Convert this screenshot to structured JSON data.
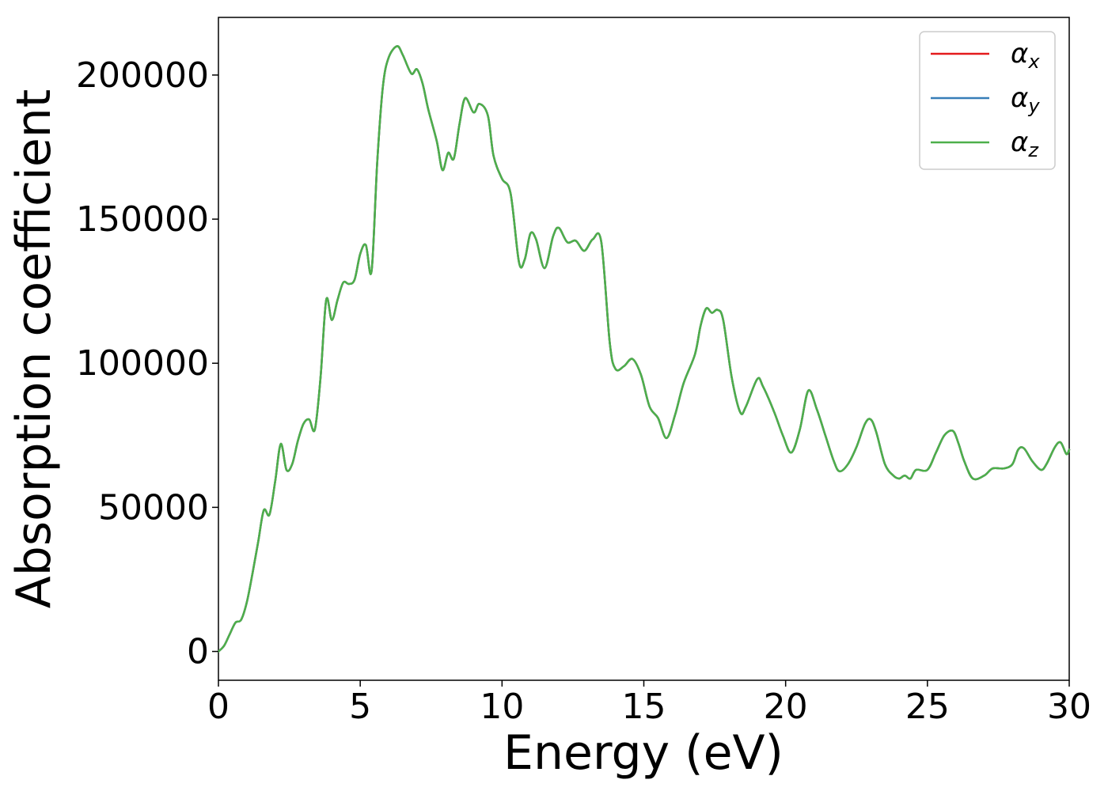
{
  "chart_data": {
    "type": "line",
    "xlabel": "Energy (eV)",
    "ylabel": "Absorption coefficient",
    "xlim": [
      0,
      30
    ],
    "ylim": [
      -10000,
      220000
    ],
    "xticks": [
      "0",
      "5",
      "10",
      "15",
      "20",
      "25",
      "30"
    ],
    "xtick_values": [
      0,
      5,
      10,
      15,
      20,
      25,
      30
    ],
    "yticks": [
      "0",
      "50000",
      "100000",
      "150000",
      "200000"
    ],
    "ytick_values": [
      0,
      50000,
      100000,
      150000,
      200000
    ],
    "grid": false,
    "legend_position": "top-right",
    "series": [
      {
        "name": "α",
        "sub": "x",
        "color": "#e41a1c",
        "ref": "shared"
      },
      {
        "name": "α",
        "sub": "y",
        "color": "#377eb8",
        "ref": "shared"
      },
      {
        "name": "α",
        "sub": "z",
        "color": "#4daf4a",
        "ref": "shared"
      }
    ],
    "shared_points": [
      [
        0,
        0
      ],
      [
        0.2,
        2000
      ],
      [
        0.4,
        6000
      ],
      [
        0.6,
        10000
      ],
      [
        0.8,
        11000
      ],
      [
        1.0,
        17000
      ],
      [
        1.2,
        27000
      ],
      [
        1.4,
        38000
      ],
      [
        1.6,
        49000
      ],
      [
        1.8,
        47500
      ],
      [
        2.0,
        59000
      ],
      [
        2.2,
        72000
      ],
      [
        2.4,
        63000
      ],
      [
        2.6,
        65000
      ],
      [
        2.8,
        73000
      ],
      [
        3.0,
        79000
      ],
      [
        3.2,
        80500
      ],
      [
        3.4,
        77000
      ],
      [
        3.6,
        95000
      ],
      [
        3.8,
        122000
      ],
      [
        4.0,
        115000
      ],
      [
        4.2,
        122000
      ],
      [
        4.4,
        128000
      ],
      [
        4.6,
        127500
      ],
      [
        4.8,
        129000
      ],
      [
        5.0,
        138000
      ],
      [
        5.2,
        141000
      ],
      [
        5.4,
        132000
      ],
      [
        5.6,
        170000
      ],
      [
        5.8,
        196000
      ],
      [
        6.0,
        206000
      ],
      [
        6.3,
        210000
      ],
      [
        6.5,
        207000
      ],
      [
        6.8,
        200500
      ],
      [
        7.0,
        202000
      ],
      [
        7.2,
        197000
      ],
      [
        7.4,
        188000
      ],
      [
        7.7,
        177000
      ],
      [
        7.9,
        167000
      ],
      [
        8.1,
        173000
      ],
      [
        8.3,
        171000
      ],
      [
        8.5,
        183000
      ],
      [
        8.7,
        192000
      ],
      [
        9.0,
        187000
      ],
      [
        9.2,
        190000
      ],
      [
        9.5,
        186000
      ],
      [
        9.7,
        172000
      ],
      [
        10.0,
        164000
      ],
      [
        10.3,
        159000
      ],
      [
        10.6,
        135000
      ],
      [
        10.8,
        136000
      ],
      [
        11.0,
        145000
      ],
      [
        11.2,
        143000
      ],
      [
        11.5,
        133000
      ],
      [
        11.8,
        144000
      ],
      [
        12.0,
        147000
      ],
      [
        12.3,
        142000
      ],
      [
        12.6,
        142500
      ],
      [
        12.9,
        139000
      ],
      [
        13.2,
        143000
      ],
      [
        13.5,
        142000
      ],
      [
        13.8,
        107000
      ],
      [
        14.0,
        98000
      ],
      [
        14.3,
        99000
      ],
      [
        14.6,
        101500
      ],
      [
        14.9,
        96000
      ],
      [
        15.2,
        85000
      ],
      [
        15.5,
        81000
      ],
      [
        15.8,
        74000
      ],
      [
        16.1,
        82000
      ],
      [
        16.4,
        93000
      ],
      [
        16.8,
        103000
      ],
      [
        17.0,
        113000
      ],
      [
        17.2,
        119000
      ],
      [
        17.4,
        117500
      ],
      [
        17.6,
        118500
      ],
      [
        17.8,
        115000
      ],
      [
        18.1,
        95000
      ],
      [
        18.4,
        83000
      ],
      [
        18.6,
        85000
      ],
      [
        19.0,
        94500
      ],
      [
        19.2,
        92000
      ],
      [
        19.6,
        83000
      ],
      [
        19.9,
        75000
      ],
      [
        20.2,
        69000
      ],
      [
        20.5,
        77000
      ],
      [
        20.8,
        90500
      ],
      [
        21.1,
        84000
      ],
      [
        21.4,
        75000
      ],
      [
        21.7,
        66000
      ],
      [
        21.9,
        62500
      ],
      [
        22.2,
        65000
      ],
      [
        22.5,
        71000
      ],
      [
        22.8,
        79000
      ],
      [
        23.0,
        80500
      ],
      [
        23.2,
        76000
      ],
      [
        23.5,
        65000
      ],
      [
        23.8,
        61000
      ],
      [
        24.0,
        60000
      ],
      [
        24.2,
        61000
      ],
      [
        24.4,
        60000
      ],
      [
        24.6,
        63000
      ],
      [
        25.0,
        63000
      ],
      [
        25.3,
        69000
      ],
      [
        25.6,
        75000
      ],
      [
        25.9,
        76500
      ],
      [
        26.1,
        72000
      ],
      [
        26.3,
        66000
      ],
      [
        26.6,
        60000
      ],
      [
        27.0,
        61000
      ],
      [
        27.3,
        63500
      ],
      [
        27.7,
        63500
      ],
      [
        28.0,
        65000
      ],
      [
        28.2,
        70000
      ],
      [
        28.4,
        70500
      ],
      [
        28.7,
        66000
      ],
      [
        29.0,
        63000
      ],
      [
        29.2,
        65000
      ],
      [
        29.5,
        71000
      ],
      [
        29.7,
        72500
      ],
      [
        29.9,
        68500
      ],
      [
        30.0,
        70000
      ]
    ]
  }
}
